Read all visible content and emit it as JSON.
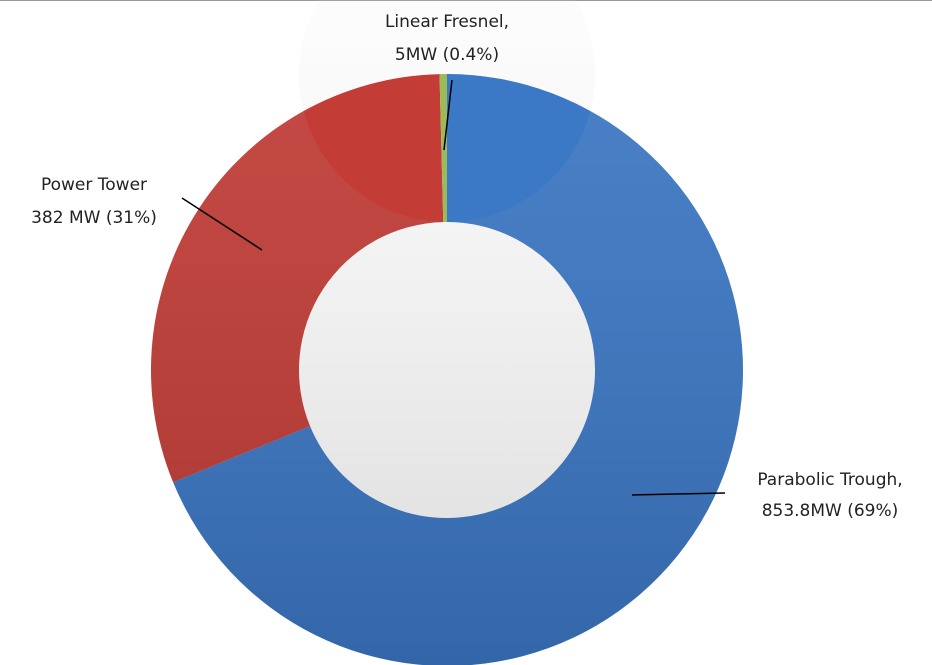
{
  "chart_data": {
    "type": "donut",
    "categories": [
      "Parabolic Trough,",
      "Power Tower",
      "Linear Fresnel,"
    ],
    "values": [
      853.8,
      382,
      5
    ],
    "value_labels": [
      "853.8MW (69%)",
      "382 MW (31%)",
      "5MW (0.4%)"
    ],
    "colors": [
      "#3b78c6",
      "#c43c36",
      "#9bbb59"
    ]
  }
}
